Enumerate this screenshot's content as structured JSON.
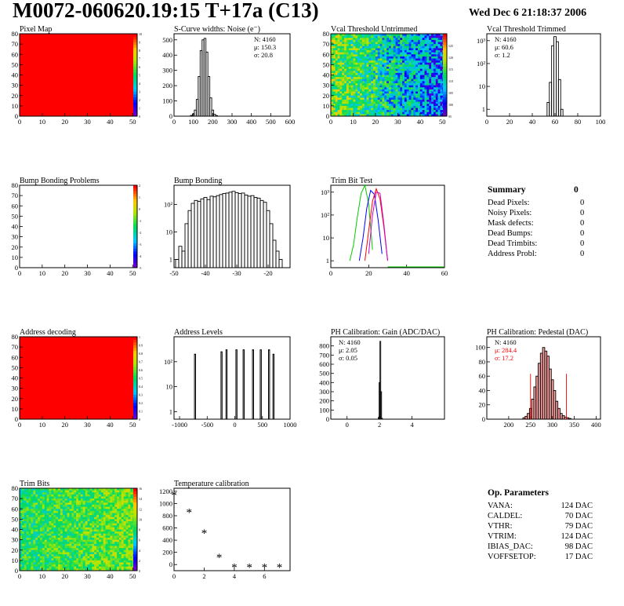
{
  "header": {
    "title": "M0072-060620.19:15 T+17a (C13)",
    "date": "Wed Dec  6 21:18:37 2006"
  },
  "colors": {
    "hist_line": "#000000",
    "trim_green": "#00cc00",
    "trim_blue": "#0000ff",
    "trim_red": "#ff0000",
    "trim_magenta": "#cc00cc",
    "fit_red": "#ff0000",
    "map_fill_red": "#ff0000"
  },
  "palette_icon": "rainbow-color-scale",
  "summary": {
    "title": "Summary",
    "value": "0",
    "rows": [
      {
        "label": "Dead Pixels:",
        "value": "0"
      },
      {
        "label": "Noisy Pixels:",
        "value": "0"
      },
      {
        "label": "Mask defects:",
        "value": "0"
      },
      {
        "label": "Dead Bumps:",
        "value": "0"
      },
      {
        "label": "Dead Trimbits:",
        "value": "0"
      },
      {
        "label": "Address Probl:",
        "value": "0"
      }
    ]
  },
  "op_params": {
    "title": "Op. Parameters",
    "rows": [
      {
        "label": "VANA:",
        "value": "124 DAC"
      },
      {
        "label": "CALDEL:",
        "value": "70 DAC"
      },
      {
        "label": "VTHR:",
        "value": "79 DAC"
      },
      {
        "label": "VTRIM:",
        "value": "124 DAC"
      },
      {
        "label": "IBIAS_DAC:",
        "value": "98 DAC"
      },
      {
        "label": "VOFFSETOP:",
        "value": "17 DAC"
      }
    ]
  },
  "chart_data": [
    {
      "id": "pixel-map",
      "type": "heatmap",
      "title": "Pixel Map",
      "xlim": [
        0,
        52
      ],
      "ylim": [
        0,
        80
      ],
      "xticks": [
        0,
        10,
        20,
        30,
        40,
        50
      ],
      "yticks": [
        0,
        10,
        20,
        30,
        40,
        50,
        60,
        70,
        80
      ],
      "fill": "uniform-max",
      "zlim": [
        0,
        10
      ],
      "zticks": [
        0,
        1,
        2,
        3,
        4,
        5,
        6,
        7,
        8,
        9,
        10
      ]
    },
    {
      "id": "scurve-noise",
      "type": "bar",
      "title": "S-Curve widths: Noise (e⁻)",
      "xlim": [
        0,
        600
      ],
      "ylim": [
        0,
        540
      ],
      "xticks": [
        0,
        100,
        200,
        300,
        400,
        500,
        600
      ],
      "yticks": [
        0,
        100,
        200,
        300,
        400,
        500
      ],
      "stats": [
        "N: 4160",
        "μ: 150.3",
        "σ: 20.8"
      ],
      "x": [
        90,
        100,
        110,
        120,
        130,
        140,
        150,
        160,
        170,
        180,
        190,
        200,
        210,
        220
      ],
      "values": [
        5,
        15,
        40,
        110,
        260,
        430,
        500,
        510,
        420,
        260,
        120,
        40,
        12,
        4
      ]
    },
    {
      "id": "vcal-untrimmed",
      "type": "heatmap",
      "title": "Vcal Threshold Untrimmed",
      "xlim": [
        0,
        52
      ],
      "ylim": [
        0,
        80
      ],
      "xticks": [
        0,
        10,
        20,
        30,
        40,
        50
      ],
      "yticks": [
        0,
        10,
        20,
        30,
        40,
        50,
        60,
        70,
        80
      ],
      "fill": "noisy-gradient",
      "zlim": [
        95,
        130
      ],
      "zticks": [
        95,
        100,
        105,
        110,
        115,
        120,
        125
      ]
    },
    {
      "id": "vcal-trimmed",
      "type": "bar",
      "title": "Vcal Threshold Trimmed",
      "xlim": [
        0,
        100
      ],
      "ylim": [
        0.5,
        2000
      ],
      "yscale": "log",
      "xticks": [
        0,
        20,
        40,
        60,
        80,
        100
      ],
      "yticks": [
        1,
        10,
        100,
        1000
      ],
      "yticklabels": [
        "1",
        "10",
        "10²",
        "10³"
      ],
      "stats": [
        "N: 4160",
        "μ: 60.6",
        "σ:  1.2"
      ],
      "x": [
        54,
        56,
        58,
        60,
        62,
        64,
        66
      ],
      "values": [
        2,
        15,
        600,
        1500,
        900,
        20,
        1
      ]
    },
    {
      "id": "bump-problems",
      "type": "heatmap",
      "title": "Bump Bonding Problems",
      "xlim": [
        0,
        52
      ],
      "ylim": [
        0,
        80
      ],
      "xticks": [
        0,
        10,
        20,
        30,
        40,
        50
      ],
      "yticks": [
        0,
        10,
        20,
        30,
        40,
        50,
        60,
        70,
        80
      ],
      "fill": "empty",
      "zlim": [
        -5,
        2
      ],
      "zticks": [
        -5,
        -4,
        -3,
        -2,
        -1,
        0,
        1,
        2
      ]
    },
    {
      "id": "bump-bonding",
      "type": "bar",
      "title": "Bump Bonding",
      "xlim": [
        -50,
        -13
      ],
      "ylim": [
        0.5,
        500
      ],
      "yscale": "log",
      "xticks": [
        -50,
        -40,
        -30,
        -20
      ],
      "yticks": [
        1,
        10,
        100
      ],
      "yticklabels": [
        "1",
        "10",
        "10²"
      ],
      "x": [
        -49,
        -48,
        -47,
        -46,
        -45,
        -44,
        -43,
        -42,
        -41,
        -40,
        -39,
        -38,
        -37,
        -36,
        -35,
        -34,
        -33,
        -32,
        -31,
        -30,
        -29,
        -28,
        -27,
        -26,
        -25,
        -24,
        -23,
        -22,
        -21,
        -20,
        -19,
        -18,
        -17,
        -16
      ],
      "values": [
        1,
        3,
        2,
        20,
        60,
        110,
        140,
        130,
        160,
        180,
        150,
        200,
        190,
        210,
        230,
        250,
        260,
        280,
        300,
        270,
        250,
        260,
        220,
        200,
        210,
        180,
        170,
        140,
        120,
        60,
        20,
        5,
        2,
        1
      ]
    },
    {
      "id": "trim-bit-test",
      "type": "line",
      "title": "Trim Bit Test",
      "xlim": [
        0,
        60
      ],
      "ylim": [
        0.5,
        2000
      ],
      "yscale": "log",
      "xticks": [
        0,
        20,
        40,
        60
      ],
      "yticks": [
        1,
        10,
        100,
        1000
      ],
      "yticklabels": [
        "1",
        "10",
        "10²",
        "10³"
      ],
      "series": [
        {
          "color": "#00cc00",
          "x": [
            10,
            12,
            14,
            16,
            18,
            20,
            22
          ],
          "values": [
            1,
            5,
            80,
            900,
            2000,
            300,
            3
          ]
        },
        {
          "color": "#0000ff",
          "x": [
            15,
            17,
            19,
            21,
            23,
            25,
            27
          ],
          "values": [
            1,
            10,
            200,
            1200,
            800,
            60,
            2
          ]
        },
        {
          "color": "#ff0000",
          "x": [
            18,
            20,
            22,
            24,
            26,
            28,
            30
          ],
          "values": [
            1,
            20,
            400,
            1400,
            500,
            30,
            1
          ]
        },
        {
          "color": "#cc00cc",
          "x": [
            20,
            22,
            24,
            26,
            28,
            30
          ],
          "values": [
            2,
            100,
            1000,
            900,
            40,
            1
          ]
        }
      ]
    },
    {
      "id": "address-decoding",
      "type": "heatmap",
      "title": "Address decoding",
      "xlim": [
        0,
        52
      ],
      "ylim": [
        0,
        80
      ],
      "xticks": [
        0,
        10,
        20,
        30,
        40,
        50
      ],
      "yticks": [
        0,
        10,
        20,
        30,
        40,
        50,
        60,
        70,
        80
      ],
      "fill": "uniform-max",
      "zlim": [
        0,
        1
      ],
      "zticks": [
        0,
        0.1,
        0.2,
        0.3,
        0.4,
        0.5,
        0.6,
        0.7,
        0.8,
        0.9,
        1
      ]
    },
    {
      "id": "address-levels",
      "type": "bar",
      "title": "Address Levels",
      "xlim": [
        -1100,
        1000
      ],
      "ylim": [
        0.5,
        1000
      ],
      "yscale": "log",
      "xticks": [
        -1000,
        -500,
        0,
        500,
        1000
      ],
      "yticks": [
        1,
        10,
        100
      ],
      "yticklabels": [
        "1",
        "10",
        "10²"
      ],
      "x": [
        -720,
        -240,
        -150,
        30,
        160,
        330,
        470,
        620,
        700
      ],
      "values": [
        200,
        250,
        300,
        300,
        300,
        300,
        300,
        300,
        200
      ]
    },
    {
      "id": "ph-gain",
      "type": "bar",
      "title": "PH Calibration: Gain (ADC/DAC)",
      "xlim": [
        -1,
        6
      ],
      "ylim": [
        0,
        900
      ],
      "xticks": [
        0,
        2,
        4
      ],
      "yticks": [
        0,
        100,
        200,
        300,
        400,
        500,
        600,
        700,
        800
      ],
      "stats": [
        "N: 4160",
        "μ: 2.05",
        "σ: 0.05"
      ],
      "x": [
        1.95,
        2.0,
        2.05,
        2.1,
        2.15
      ],
      "values": [
        20,
        400,
        850,
        300,
        10
      ]
    },
    {
      "id": "ph-pedestal",
      "type": "bar",
      "title": "PH Calibration: Pedestal (DAC)",
      "xlim": [
        150,
        410
      ],
      "ylim": [
        0,
        115
      ],
      "xticks": [
        200,
        250,
        300,
        350,
        400
      ],
      "yticks": [
        0,
        20,
        40,
        60,
        80,
        100
      ],
      "stats": [
        "N: 4160",
        "μ: 284.4",
        "σ: 17.2"
      ],
      "x": [
        235,
        240,
        245,
        250,
        255,
        260,
        265,
        270,
        275,
        280,
        285,
        290,
        295,
        300,
        305,
        310,
        315,
        320,
        325,
        330,
        335,
        340
      ],
      "values": [
        2,
        4,
        8,
        15,
        28,
        45,
        60,
        78,
        92,
        100,
        95,
        88,
        70,
        55,
        40,
        25,
        15,
        8,
        5,
        3,
        2,
        1
      ],
      "fit_lines": [
        250,
        332
      ]
    },
    {
      "id": "trim-bits",
      "type": "heatmap",
      "title": "Trim Bits",
      "xlim": [
        0,
        52
      ],
      "ylim": [
        0,
        80
      ],
      "xticks": [
        0,
        10,
        20,
        30,
        40,
        50
      ],
      "yticks": [
        0,
        10,
        20,
        30,
        40,
        50,
        60,
        70,
        80
      ],
      "fill": "noisy-green",
      "zlim": [
        0,
        16
      ],
      "zticks": [
        0,
        2,
        4,
        6,
        8,
        10,
        12,
        14,
        16
      ]
    },
    {
      "id": "temperature-calibration",
      "type": "scatter",
      "title": "Temperature calibration",
      "xlim": [
        0,
        7.7
      ],
      "ylim": [
        -100,
        1250
      ],
      "xticks": [
        0,
        2,
        4,
        6
      ],
      "yticks": [
        0,
        200,
        400,
        600,
        800,
        1000,
        1200
      ],
      "marker": "asterisk",
      "x": [
        0,
        1,
        2,
        3,
        4,
        5,
        6,
        7
      ],
      "values": [
        1140,
        860,
        520,
        120,
        -40,
        -40,
        -40,
        -40
      ]
    }
  ]
}
